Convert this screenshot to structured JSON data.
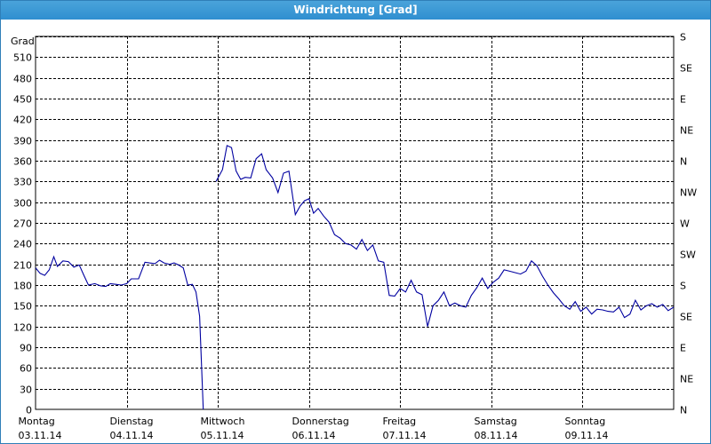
{
  "window": {
    "title": "Windrichtung [Grad]"
  },
  "chart_data": {
    "type": "line",
    "title": "Windrichtung [Grad]",
    "ylabel": "Grad",
    "ylim": [
      0,
      540
    ],
    "yticks": [
      0,
      30,
      60,
      90,
      120,
      150,
      180,
      210,
      240,
      270,
      300,
      330,
      360,
      390,
      420,
      450,
      480,
      510
    ],
    "right_axis_labels": [
      "N",
      "NE",
      "E",
      "SE",
      "S",
      "SW",
      "W",
      "NW",
      "N",
      "NE",
      "E",
      "SE",
      "S"
    ],
    "xlim": [
      0,
      7
    ],
    "x_unit": "days from Montag 03.11.14",
    "xticks": [
      {
        "day": "Montag",
        "date": "03.11.14",
        "x": 0
      },
      {
        "day": "Dienstag",
        "date": "04.11.14",
        "x": 1
      },
      {
        "day": "Mittwoch",
        "date": "05.11.14",
        "x": 2
      },
      {
        "day": "Donnerstag",
        "date": "06.11.14",
        "x": 3
      },
      {
        "day": "Freitag",
        "date": "07.11.14",
        "x": 4
      },
      {
        "day": "Samstag",
        "date": "08.11.14",
        "x": 5
      },
      {
        "day": "Sonntag",
        "date": "09.11.14",
        "x": 6
      }
    ],
    "grid": true,
    "line_color": "#0000a0",
    "series": [
      {
        "segments": [
          [
            [
              0.0,
              205
            ],
            [
              0.05,
              197
            ],
            [
              0.1,
              194
            ],
            [
              0.15,
              202
            ],
            [
              0.2,
              221
            ],
            [
              0.24,
              207
            ],
            [
              0.3,
              215
            ],
            [
              0.36,
              214
            ],
            [
              0.42,
              206
            ],
            [
              0.48,
              209
            ],
            [
              0.53,
              194
            ],
            [
              0.58,
              180
            ],
            [
              0.65,
              182
            ],
            [
              0.71,
              179
            ],
            [
              0.77,
              178
            ],
            [
              0.82,
              182
            ],
            [
              0.88,
              181
            ],
            [
              0.94,
              180
            ],
            [
              1.0,
              182
            ],
            [
              1.05,
              189
            ],
            [
              1.13,
              189
            ],
            [
              1.2,
              213
            ],
            [
              1.25,
              212
            ],
            [
              1.31,
              211
            ],
            [
              1.36,
              216
            ],
            [
              1.41,
              212
            ],
            [
              1.47,
              210
            ],
            [
              1.52,
              212
            ],
            [
              1.57,
              209
            ],
            [
              1.62,
              205
            ],
            [
              1.67,
              180
            ],
            [
              1.72,
              181
            ],
            [
              1.76,
              170
            ],
            [
              1.8,
              135
            ],
            [
              1.84,
              0
            ]
          ],
          [
            [
              1.98,
              330
            ],
            [
              2.05,
              347
            ],
            [
              2.1,
              382
            ],
            [
              2.15,
              379
            ],
            [
              2.2,
              345
            ],
            [
              2.25,
              333
            ],
            [
              2.3,
              336
            ],
            [
              2.36,
              335
            ],
            [
              2.42,
              363
            ],
            [
              2.48,
              370
            ],
            [
              2.53,
              347
            ],
            [
              2.6,
              335
            ],
            [
              2.66,
              314
            ],
            [
              2.72,
              342
            ],
            [
              2.78,
              345
            ],
            [
              2.85,
              282
            ],
            [
              2.9,
              294
            ],
            [
              2.95,
              302
            ],
            [
              3.0,
              305
            ],
            [
              3.05,
              284
            ],
            [
              3.1,
              291
            ],
            [
              3.16,
              280
            ],
            [
              3.22,
              271
            ],
            [
              3.28,
              253
            ],
            [
              3.34,
              248
            ],
            [
              3.4,
              240
            ],
            [
              3.46,
              238
            ],
            [
              3.52,
              232
            ],
            [
              3.58,
              246
            ],
            [
              3.64,
              230
            ],
            [
              3.7,
              238
            ],
            [
              3.76,
              215
            ],
            [
              3.82,
              213
            ],
            [
              3.88,
              165
            ],
            [
              3.94,
              164
            ],
            [
              4.0,
              175
            ],
            [
              4.06,
              170
            ],
            [
              4.12,
              187
            ],
            [
              4.18,
              170
            ],
            [
              4.24,
              166
            ],
            [
              4.3,
              120
            ],
            [
              4.36,
              150
            ],
            [
              4.42,
              158
            ],
            [
              4.48,
              170
            ],
            [
              4.54,
              150
            ],
            [
              4.6,
              154
            ],
            [
              4.66,
              150
            ],
            [
              4.72,
              148
            ],
            [
              4.78,
              165
            ],
            [
              4.84,
              176
            ],
            [
              4.9,
              190
            ],
            [
              4.96,
              175
            ],
            [
              5.02,
              184
            ],
            [
              5.08,
              190
            ],
            [
              5.14,
              202
            ],
            [
              5.2,
              200
            ],
            [
              5.26,
              198
            ],
            [
              5.32,
              196
            ],
            [
              5.38,
              200
            ],
            [
              5.44,
              215
            ],
            [
              5.5,
              208
            ],
            [
              5.56,
              193
            ],
            [
              5.62,
              180
            ],
            [
              5.68,
              169
            ],
            [
              5.74,
              160
            ],
            [
              5.8,
              150
            ],
            [
              5.86,
              145
            ],
            [
              5.92,
              156
            ],
            [
              5.98,
              142
            ],
            [
              6.04,
              148
            ],
            [
              6.1,
              138
            ],
            [
              6.16,
              145
            ],
            [
              6.22,
              144
            ],
            [
              6.28,
              142
            ],
            [
              6.34,
              141
            ],
            [
              6.4,
              148
            ],
            [
              6.46,
              133
            ],
            [
              6.52,
              138
            ],
            [
              6.58,
              158
            ],
            [
              6.64,
              144
            ],
            [
              6.7,
              150
            ],
            [
              6.76,
              153
            ],
            [
              6.82,
              148
            ],
            [
              6.88,
              152
            ],
            [
              6.94,
              143
            ],
            [
              7.0,
              148
            ]
          ]
        ]
      }
    ]
  }
}
